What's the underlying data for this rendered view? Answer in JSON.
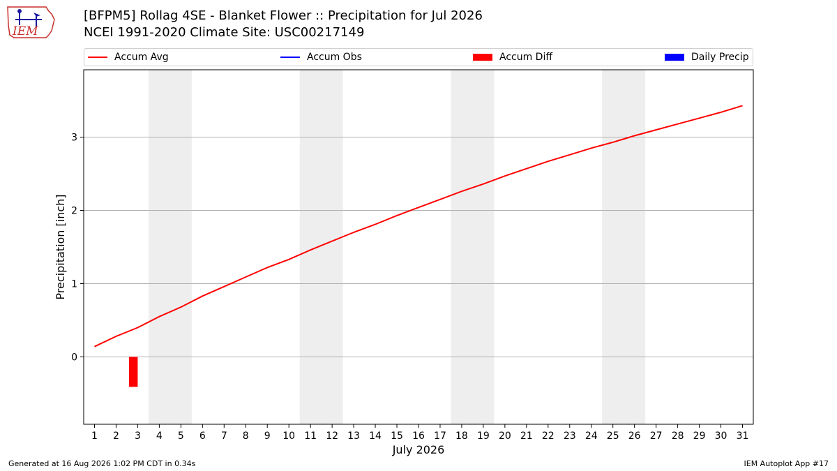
{
  "header": {
    "title_line1": "[BFPM5] Rollag 4SE - Blanket Flower :: Precipitation for Jul 2026",
    "title_line2": "NCEI 1991-2020 Climate Site: USC00217149",
    "logo_text": "IEM"
  },
  "legend": {
    "items": [
      {
        "label": "Accum Avg",
        "kind": "line",
        "color": "#ff0000"
      },
      {
        "label": "Accum Obs",
        "kind": "line",
        "color": "#0000ff"
      },
      {
        "label": "Accum Diff",
        "kind": "box",
        "color": "#ff0000"
      },
      {
        "label": "Daily Precip",
        "kind": "box",
        "color": "#0000ff"
      }
    ]
  },
  "footer": {
    "generated": "Generated at 16 Aug 2026 1:02 PM CDT in 0.34s",
    "app": "IEM Autoplot App #17"
  },
  "chart_data": {
    "type": "line",
    "xlabel": "July 2026",
    "ylabel": "Precipitation [inch]",
    "xlim": [
      0.5,
      31.5
    ],
    "ylim": [
      -0.92,
      3.92
    ],
    "x": [
      1,
      2,
      3,
      4,
      5,
      6,
      7,
      8,
      9,
      10,
      11,
      12,
      13,
      14,
      15,
      16,
      17,
      18,
      19,
      20,
      21,
      22,
      23,
      24,
      25,
      26,
      27,
      28,
      29,
      30,
      31
    ],
    "x_tick_labels": [
      "1",
      "2",
      "3",
      "4",
      "5",
      "6",
      "7",
      "8",
      "9",
      "10",
      "11",
      "12",
      "13",
      "14",
      "15",
      "16",
      "17",
      "18",
      "19",
      "20",
      "21",
      "22",
      "23",
      "24",
      "25",
      "26",
      "27",
      "28",
      "29",
      "30",
      "31"
    ],
    "y_ticks": [
      0,
      1,
      2,
      3
    ],
    "grid": "horizontal",
    "weekend_shading": [
      [
        3.5,
        5.5
      ],
      [
        10.5,
        12.5
      ],
      [
        17.5,
        19.5
      ],
      [
        24.5,
        26.5
      ]
    ],
    "series": [
      {
        "name": "Accum Avg",
        "color": "#ff0000",
        "kind": "line",
        "values": [
          0.14,
          0.28,
          0.4,
          0.55,
          0.68,
          0.83,
          0.96,
          1.09,
          1.22,
          1.33,
          1.46,
          1.58,
          1.7,
          1.81,
          1.93,
          2.04,
          2.15,
          2.26,
          2.36,
          2.47,
          2.57,
          2.67,
          2.76,
          2.85,
          2.93,
          3.02,
          3.1,
          3.18,
          3.26,
          3.34,
          3.43
        ]
      },
      {
        "name": "Accum Diff",
        "color": "#ff0000",
        "kind": "bar",
        "points": [
          {
            "x": 2.8,
            "value": -0.41
          }
        ]
      }
    ]
  }
}
